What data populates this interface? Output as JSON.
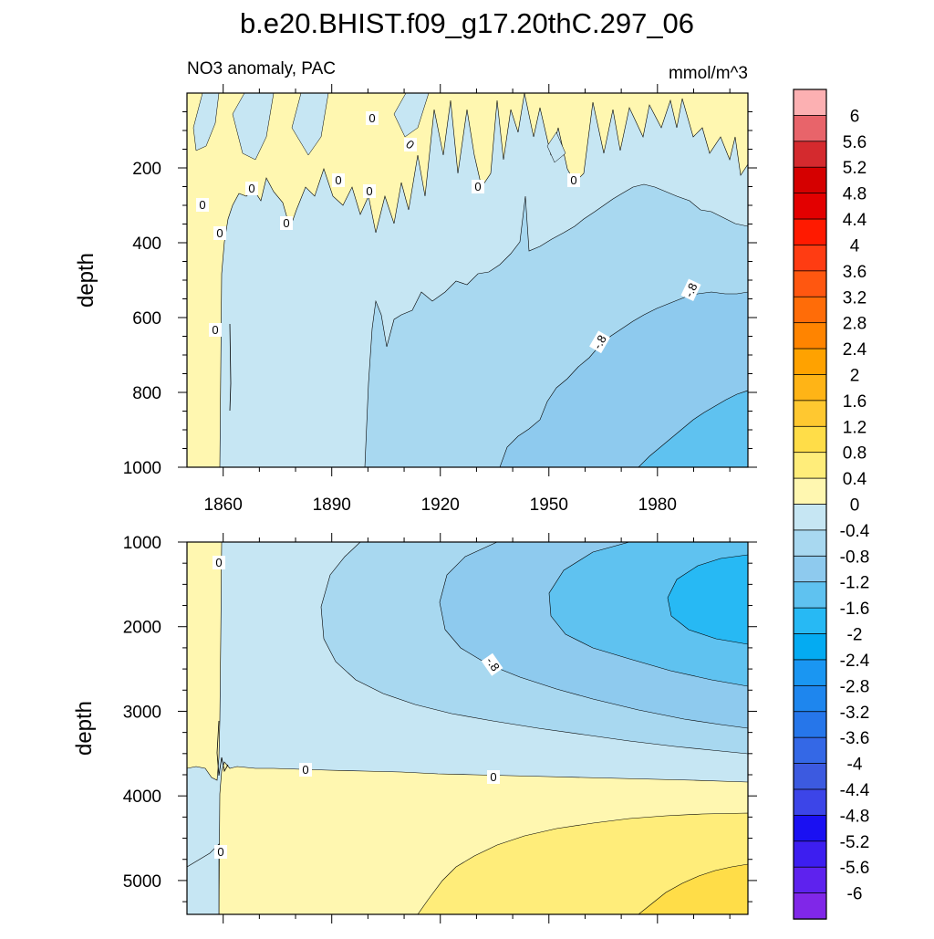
{
  "chart_data": {
    "type": "heatmap",
    "title": "b.e20.BHIST.f09_g17.20thC.297_06",
    "subtitle_left": "NO3 anomaly, PAC",
    "subtitle_right": "mmol/m^3",
    "colorbar": {
      "labels": [
        "6",
        "5.6",
        "5.2",
        "4.8",
        "4.4",
        "4",
        "3.6",
        "3.2",
        "2.8",
        "2.4",
        "2",
        "1.6",
        "1.2",
        "0.8",
        "0.4",
        "0",
        "-0.4",
        "-0.8",
        "-1.2",
        "-1.6",
        "-2",
        "-2.4",
        "-2.8",
        "-3.2",
        "-3.6",
        "-4",
        "-4.4",
        "-4.8",
        "-5.2",
        "-5.6",
        "-6"
      ],
      "colors": [
        "#FCB0B2",
        "#E8646A",
        "#D42A2E",
        "#D50000",
        "#E30000",
        "#FF1A00",
        "#FF3C12",
        "#FF5710",
        "#FF6C08",
        "#FF8400",
        "#FFA200",
        "#FFB416",
        "#FFC830",
        "#FFDD48",
        "#FFED7A",
        "#FFF7B0",
        "#C6E6F3",
        "#A8D8F0",
        "#8ECAEE",
        "#5FC2F0",
        "#27B9F4",
        "#04ABF2",
        "#1A96F2",
        "#1E86EE",
        "#2676EA",
        "#3468E6",
        "#3C5AE0",
        "#3C45E8",
        "#1A10F2",
        "#3D1EF0",
        "#5E22EE",
        "#8027E8"
      ]
    },
    "panels": [
      {
        "name": "upper",
        "xlabel": "",
        "ylabel": "depth",
        "xlim": [
          1850,
          2005
        ],
        "ylim": [
          0,
          1000
        ],
        "yreversed": true,
        "xticks": [
          "1860",
          "1890",
          "1920",
          "1950",
          "1980"
        ],
        "yticks": [
          "200",
          "400",
          "600",
          "800",
          "1000"
        ],
        "contour_labels": [
          "0",
          "0",
          "0",
          "0",
          "0",
          "0",
          "0",
          "0",
          "0",
          "0",
          "0",
          "-.8",
          "-.8"
        ]
      },
      {
        "name": "lower",
        "xlabel": "",
        "ylabel": "depth",
        "xlim": [
          1850,
          2005
        ],
        "ylim": [
          1000,
          5400
        ],
        "yreversed": true,
        "yticks": [
          "1000",
          "2000",
          "3000",
          "4000",
          "5000"
        ],
        "contour_labels": [
          "0",
          "0",
          "0",
          "0",
          "-.8"
        ]
      }
    ]
  }
}
